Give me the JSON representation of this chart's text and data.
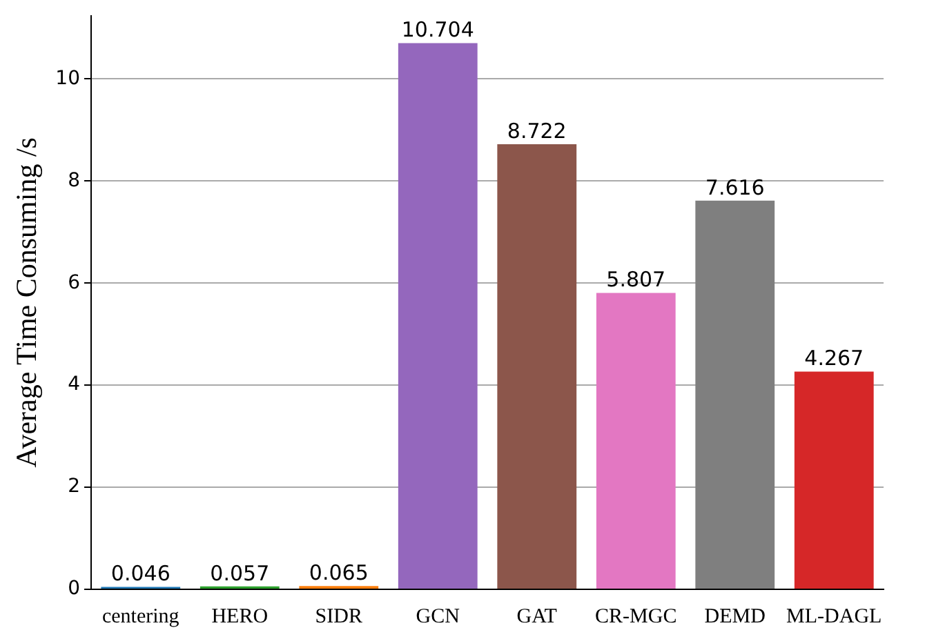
{
  "chart_data": {
    "type": "bar",
    "ylabel": "Average Time Consuming /s",
    "categories": [
      "centering",
      "HERO",
      "SIDR",
      "GCN",
      "GAT",
      "CR-MGC",
      "DEMD",
      "ML-DAGL"
    ],
    "values": [
      0.046,
      0.057,
      0.065,
      10.704,
      8.722,
      5.807,
      7.616,
      4.267
    ],
    "colors": [
      "#1f77b4",
      "#2ca02c",
      "#ff7f0e",
      "#9467bd",
      "#8c564b",
      "#e377c2",
      "#7f7f7f",
      "#d62728"
    ],
    "ylim": [
      0,
      11.24
    ],
    "yticks": [
      0,
      2,
      4,
      6,
      8,
      10
    ],
    "grid": "y",
    "data_labels": true,
    "legend": false
  }
}
